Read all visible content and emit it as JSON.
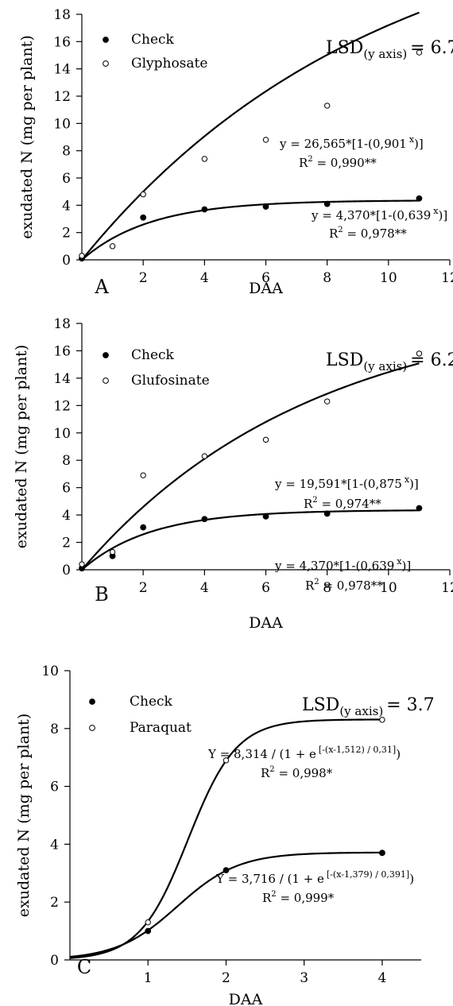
{
  "chart_data": [
    {
      "type": "scatter",
      "panel_label": "A",
      "xlabel": "DAA",
      "ylabel": "exudated N  (mg per plant)",
      "xlim": [
        0,
        12
      ],
      "ylim": [
        0,
        18
      ],
      "xticks": [
        2,
        4,
        6,
        8,
        10,
        12
      ],
      "xtick_labels": [
        "2",
        "4",
        "6",
        "8",
        "10",
        "12"
      ],
      "yticks": [
        0,
        2,
        4,
        6,
        8,
        10,
        12,
        14,
        16,
        18
      ],
      "ytick_labels": [
        "0",
        "2",
        "4",
        "6",
        "8",
        "10",
        "12",
        "14",
        "16",
        "18"
      ],
      "lsd": {
        "prefix": "LSD",
        "sub": "(y axis)",
        "value": "= 6.7"
      },
      "legend_position": "top-left",
      "series": [
        {
          "name": "Check",
          "marker": "filled",
          "x": [
            0,
            2,
            4,
            6,
            8,
            11
          ],
          "y": [
            0.1,
            3.1,
            3.7,
            3.9,
            4.1,
            4.5
          ],
          "fit": {
            "a": 4.37,
            "b": 0.639
          },
          "equation": {
            "line1_pre": "y = 4,370*[1-(0,639",
            "line1_sup": "x",
            "line1_post": ")]",
            "r2": "0,978**"
          }
        },
        {
          "name": "Glyphosate",
          "marker": "open",
          "x": [
            0,
            1,
            2,
            4,
            6,
            8,
            11
          ],
          "y": [
            0.3,
            1.0,
            4.8,
            7.4,
            8.8,
            11.3,
            15.2
          ],
          "fit": {
            "a": 26.565,
            "b": 0.901
          },
          "equation": {
            "line1_pre": "y = 26,565*[1-(0,901",
            "line1_sup": "x",
            "line1_post": ")]",
            "r2": "0,990**"
          }
        }
      ]
    },
    {
      "type": "scatter",
      "panel_label": "B",
      "xlabel": "DAA",
      "ylabel": "exudated N  (mg per plant)",
      "xlim": [
        0,
        12
      ],
      "ylim": [
        0,
        18
      ],
      "xticks": [
        2,
        4,
        6,
        8,
        10,
        12
      ],
      "xtick_labels": [
        "2",
        "4",
        "6",
        "8",
        "10",
        "12"
      ],
      "yticks": [
        0,
        2,
        4,
        6,
        8,
        10,
        12,
        14,
        16,
        18
      ],
      "ytick_labels": [
        "0",
        "2",
        "4",
        "6",
        "8",
        "10",
        "12",
        "14",
        "16",
        "18"
      ],
      "lsd": {
        "prefix": "LSD",
        "sub": "(y axis)",
        "value": "= 6.2"
      },
      "legend_position": "top-left",
      "series": [
        {
          "name": "Check",
          "marker": "filled",
          "x": [
            0,
            1,
            2,
            4,
            6,
            8,
            11
          ],
          "y": [
            0.1,
            1.0,
            3.1,
            3.7,
            3.9,
            4.1,
            4.5
          ],
          "fit": {
            "a": 4.37,
            "b": 0.639
          },
          "equation": {
            "line1_pre": "y = 4,370*[1-(0,639",
            "line1_sup": "x",
            "line1_post": ")]",
            "r2": "0,978**"
          }
        },
        {
          "name": "Glufosinate",
          "marker": "open",
          "x": [
            0,
            1,
            2,
            4,
            6,
            8,
            11
          ],
          "y": [
            0.4,
            1.3,
            6.9,
            8.3,
            9.5,
            12.3,
            15.8
          ],
          "fit": {
            "a": 19.591,
            "b": 0.875
          },
          "equation": {
            "line1_pre": "y = 19,591*[1-(0,875",
            "line1_sup": "x",
            "line1_post": ")]",
            "r2": "0,974**"
          }
        }
      ]
    },
    {
      "type": "scatter",
      "panel_label": "C",
      "xlabel": "DAA",
      "ylabel": "exudated N (mg per plant)",
      "xlim": [
        0,
        4.5
      ],
      "ylim": [
        0,
        10
      ],
      "xticks": [
        1,
        2,
        3,
        4
      ],
      "xtick_labels": [
        "1",
        "2",
        "3",
        "4"
      ],
      "yticks": [
        0,
        2,
        4,
        6,
        8,
        10
      ],
      "ytick_labels": [
        "0",
        "2",
        "4",
        "6",
        "8",
        "10"
      ],
      "lsd": {
        "prefix": "LSD",
        "sub": "(y axis)",
        "value": "= 3.7"
      },
      "legend_position": "top-left",
      "series": [
        {
          "name": "Check",
          "marker": "filled",
          "x": [
            1,
            2,
            4
          ],
          "y": [
            1.0,
            3.1,
            3.7
          ],
          "fit": {
            "a": 3.716,
            "x0": 1.379,
            "b": 0.391
          },
          "equation": {
            "line1_pre": "Y = 3,716 / (1 + e",
            "line1_sup": "[-(x-1,379) / 0,391]",
            "line1_post": ")",
            "r2": "0,999*"
          }
        },
        {
          "name": "Paraquat",
          "marker": "open",
          "x": [
            1,
            2,
            4
          ],
          "y": [
            1.3,
            6.9,
            8.3
          ],
          "fit": {
            "a": 8.314,
            "x0": 1.512,
            "b": 0.31
          },
          "equation": {
            "line1_pre": "Y = 8,314 / (1 + e",
            "line1_sup": "[-(x-1,512) / 0,31]",
            "line1_post": ")",
            "r2": "0,998*"
          }
        }
      ]
    }
  ]
}
